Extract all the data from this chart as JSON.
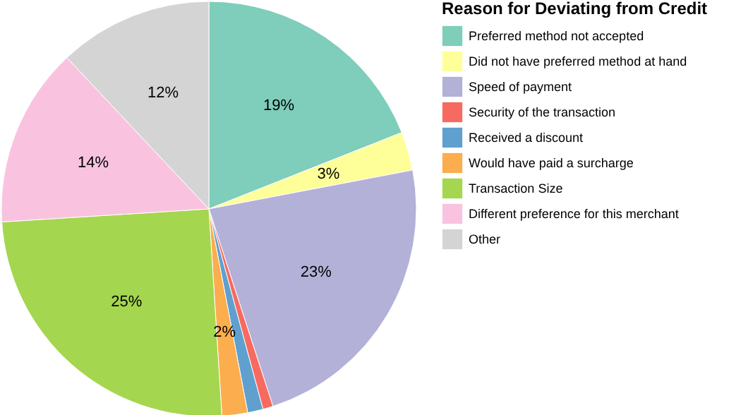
{
  "chart_data": {
    "type": "pie",
    "legend_title": "Reason for Deviating from Credit",
    "legend": "right",
    "categories": [
      "Preferred method not accepted",
      "Did not have preferred method at hand",
      "Speed of payment",
      "Security of the transaction",
      "Received a discount",
      "Would have paid a surcharge",
      "Transaction Size",
      "Different preference for this merchant",
      "Other"
    ],
    "values": [
      19,
      3,
      23,
      0.8,
      1.2,
      2,
      25,
      14,
      12
    ],
    "value_labels": [
      "19%",
      "3%",
      "23%",
      null,
      null,
      "2%",
      "25%",
      "14%",
      "12%"
    ],
    "colors": [
      "#7fcdbb",
      "#ffff99",
      "#b3b1d8",
      "#f76a5f",
      "#5fa0cf",
      "#fcad4d",
      "#a5d64f",
      "#f9c3e0",
      "#d4d4d4"
    ]
  }
}
